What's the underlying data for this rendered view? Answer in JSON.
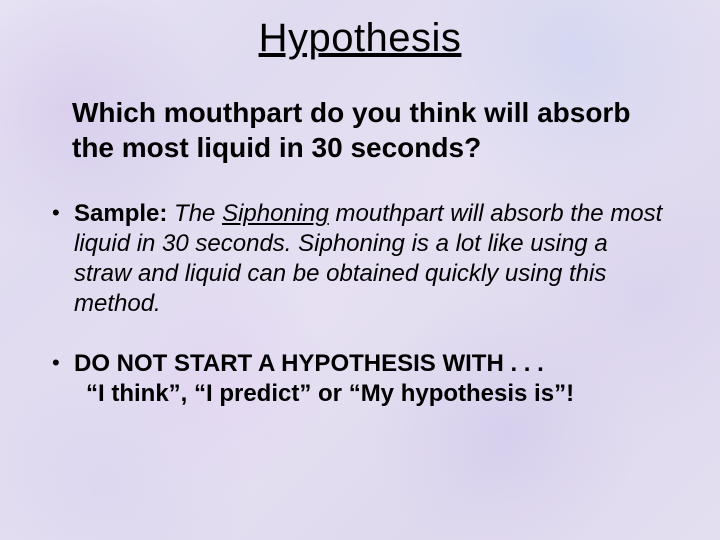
{
  "title": "Hypothesis",
  "question": "Which mouthpart do you think will absorb the most liquid in 30 seconds?",
  "sample": {
    "label": "Sample:",
    "pre": "The ",
    "keyword": "Siphoning",
    "post": " mouthpart will absorb the most liquid in 30 seconds. Siphoning is a lot like using a straw and liquid can be obtained quickly using this method."
  },
  "donot": {
    "line1": "DO NOT START A HYPOTHESIS WITH . . .",
    "line2": "“I think”, “I predict” or “My hypothesis is”!"
  },
  "style": {
    "title_fontsize": 40,
    "question_fontsize": 28,
    "body_fontsize": 24,
    "text_color": "#000000",
    "background_base": "#e4def1"
  }
}
